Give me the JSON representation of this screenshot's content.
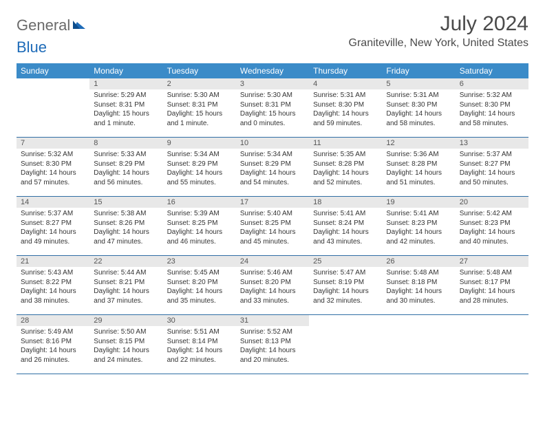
{
  "logo": {
    "part1": "General",
    "part2": "Blue"
  },
  "header": {
    "month_title": "July 2024",
    "location": "Graniteville, New York, United States"
  },
  "colors": {
    "header_bg": "#3b8bc8",
    "header_text": "#ffffff",
    "daynum_bg": "#e8e8e8",
    "border": "#2e6da4"
  },
  "weekdays": [
    "Sunday",
    "Monday",
    "Tuesday",
    "Wednesday",
    "Thursday",
    "Friday",
    "Saturday"
  ],
  "weeks": [
    [
      null,
      {
        "n": "1",
        "sunrise": "5:29 AM",
        "sunset": "8:31 PM",
        "daylight": "15 hours and 1 minute."
      },
      {
        "n": "2",
        "sunrise": "5:30 AM",
        "sunset": "8:31 PM",
        "daylight": "15 hours and 1 minute."
      },
      {
        "n": "3",
        "sunrise": "5:30 AM",
        "sunset": "8:31 PM",
        "daylight": "15 hours and 0 minutes."
      },
      {
        "n": "4",
        "sunrise": "5:31 AM",
        "sunset": "8:30 PM",
        "daylight": "14 hours and 59 minutes."
      },
      {
        "n": "5",
        "sunrise": "5:31 AM",
        "sunset": "8:30 PM",
        "daylight": "14 hours and 58 minutes."
      },
      {
        "n": "6",
        "sunrise": "5:32 AM",
        "sunset": "8:30 PM",
        "daylight": "14 hours and 58 minutes."
      }
    ],
    [
      {
        "n": "7",
        "sunrise": "5:32 AM",
        "sunset": "8:30 PM",
        "daylight": "14 hours and 57 minutes."
      },
      {
        "n": "8",
        "sunrise": "5:33 AM",
        "sunset": "8:29 PM",
        "daylight": "14 hours and 56 minutes."
      },
      {
        "n": "9",
        "sunrise": "5:34 AM",
        "sunset": "8:29 PM",
        "daylight": "14 hours and 55 minutes."
      },
      {
        "n": "10",
        "sunrise": "5:34 AM",
        "sunset": "8:29 PM",
        "daylight": "14 hours and 54 minutes."
      },
      {
        "n": "11",
        "sunrise": "5:35 AM",
        "sunset": "8:28 PM",
        "daylight": "14 hours and 52 minutes."
      },
      {
        "n": "12",
        "sunrise": "5:36 AM",
        "sunset": "8:28 PM",
        "daylight": "14 hours and 51 minutes."
      },
      {
        "n": "13",
        "sunrise": "5:37 AM",
        "sunset": "8:27 PM",
        "daylight": "14 hours and 50 minutes."
      }
    ],
    [
      {
        "n": "14",
        "sunrise": "5:37 AM",
        "sunset": "8:27 PM",
        "daylight": "14 hours and 49 minutes."
      },
      {
        "n": "15",
        "sunrise": "5:38 AM",
        "sunset": "8:26 PM",
        "daylight": "14 hours and 47 minutes."
      },
      {
        "n": "16",
        "sunrise": "5:39 AM",
        "sunset": "8:25 PM",
        "daylight": "14 hours and 46 minutes."
      },
      {
        "n": "17",
        "sunrise": "5:40 AM",
        "sunset": "8:25 PM",
        "daylight": "14 hours and 45 minutes."
      },
      {
        "n": "18",
        "sunrise": "5:41 AM",
        "sunset": "8:24 PM",
        "daylight": "14 hours and 43 minutes."
      },
      {
        "n": "19",
        "sunrise": "5:41 AM",
        "sunset": "8:23 PM",
        "daylight": "14 hours and 42 minutes."
      },
      {
        "n": "20",
        "sunrise": "5:42 AM",
        "sunset": "8:23 PM",
        "daylight": "14 hours and 40 minutes."
      }
    ],
    [
      {
        "n": "21",
        "sunrise": "5:43 AM",
        "sunset": "8:22 PM",
        "daylight": "14 hours and 38 minutes."
      },
      {
        "n": "22",
        "sunrise": "5:44 AM",
        "sunset": "8:21 PM",
        "daylight": "14 hours and 37 minutes."
      },
      {
        "n": "23",
        "sunrise": "5:45 AM",
        "sunset": "8:20 PM",
        "daylight": "14 hours and 35 minutes."
      },
      {
        "n": "24",
        "sunrise": "5:46 AM",
        "sunset": "8:20 PM",
        "daylight": "14 hours and 33 minutes."
      },
      {
        "n": "25",
        "sunrise": "5:47 AM",
        "sunset": "8:19 PM",
        "daylight": "14 hours and 32 minutes."
      },
      {
        "n": "26",
        "sunrise": "5:48 AM",
        "sunset": "8:18 PM",
        "daylight": "14 hours and 30 minutes."
      },
      {
        "n": "27",
        "sunrise": "5:48 AM",
        "sunset": "8:17 PM",
        "daylight": "14 hours and 28 minutes."
      }
    ],
    [
      {
        "n": "28",
        "sunrise": "5:49 AM",
        "sunset": "8:16 PM",
        "daylight": "14 hours and 26 minutes."
      },
      {
        "n": "29",
        "sunrise": "5:50 AM",
        "sunset": "8:15 PM",
        "daylight": "14 hours and 24 minutes."
      },
      {
        "n": "30",
        "sunrise": "5:51 AM",
        "sunset": "8:14 PM",
        "daylight": "14 hours and 22 minutes."
      },
      {
        "n": "31",
        "sunrise": "5:52 AM",
        "sunset": "8:13 PM",
        "daylight": "14 hours and 20 minutes."
      },
      null,
      null,
      null
    ]
  ],
  "labels": {
    "sunrise": "Sunrise:",
    "sunset": "Sunset:",
    "daylight": "Daylight:"
  }
}
